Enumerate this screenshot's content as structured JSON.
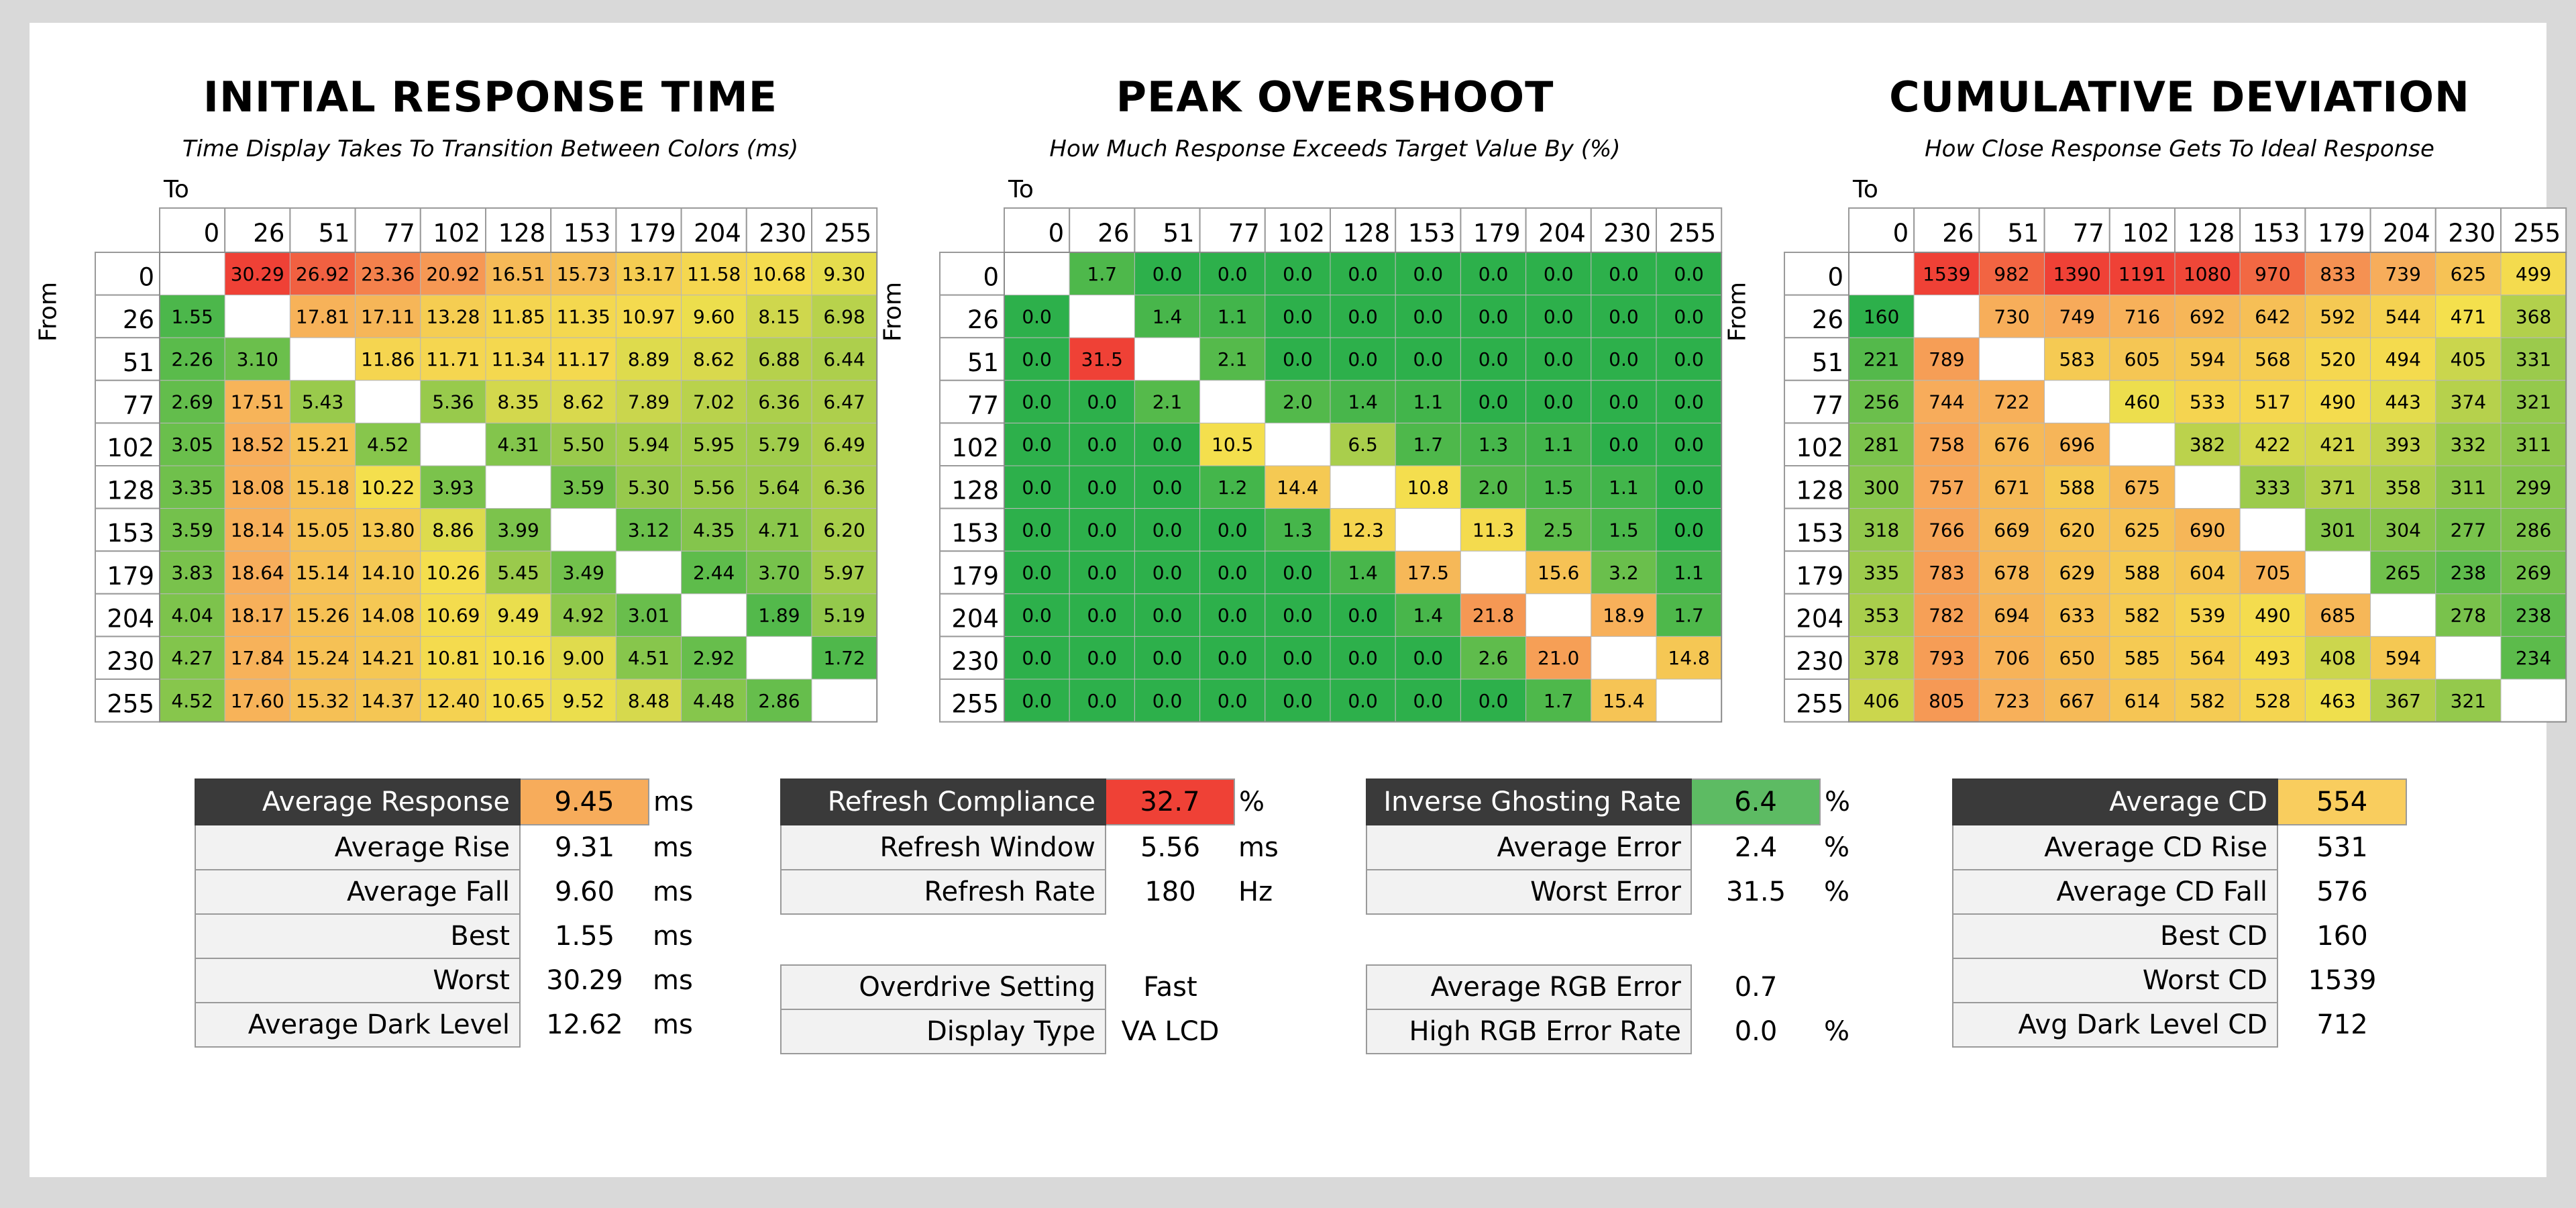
{
  "levels": [
    "0",
    "26",
    "51",
    "77",
    "102",
    "128",
    "153",
    "179",
    "204",
    "230",
    "255"
  ],
  "axis": {
    "to": "To",
    "from": "From"
  },
  "colors": {
    "green": "#2db04b",
    "yellow": "#f4e04d",
    "orange": "#f7ac5b",
    "red": "#ef4136",
    "dark": "#3a3a3a"
  },
  "charts": [
    {
      "title": "INITIAL RESPONSE TIME",
      "subtitle": "Time Display Takes To Transition Between Colors (ms)"
    },
    {
      "title": "PEAK OVERSHOOT",
      "subtitle": "How Much Response Exceeds Target Value By (%)"
    },
    {
      "title": "CUMULATIVE DEVIATION",
      "subtitle": "How Close Response Gets To Ideal Response"
    }
  ],
  "chart_data": [
    {
      "type": "heatmap",
      "title": "INITIAL RESPONSE TIME",
      "subtitle": "Time Display Takes To Transition Between Colors (ms)",
      "xlabel": "To",
      "ylabel": "From",
      "x": [
        "0",
        "26",
        "51",
        "77",
        "102",
        "128",
        "153",
        "179",
        "204",
        "230",
        "255"
      ],
      "y": [
        "0",
        "26",
        "51",
        "77",
        "102",
        "128",
        "153",
        "179",
        "204",
        "230",
        "255"
      ],
      "scale": {
        "good": 0,
        "bad": 30.29
      },
      "values": [
        [
          "",
          "30.29",
          "26.92",
          "23.36",
          "20.92",
          "16.51",
          "15.73",
          "13.17",
          "11.58",
          "10.68",
          "9.30"
        ],
        [
          "1.55",
          "",
          "17.81",
          "17.11",
          "13.28",
          "11.85",
          "11.35",
          "10.97",
          "9.60",
          "8.15",
          "6.98"
        ],
        [
          "2.26",
          "3.10",
          "",
          "11.86",
          "11.71",
          "11.34",
          "11.17",
          "8.89",
          "8.62",
          "6.88",
          "6.44"
        ],
        [
          "2.69",
          "17.51",
          "5.43",
          "",
          "5.36",
          "8.35",
          "8.62",
          "7.89",
          "7.02",
          "6.36",
          "6.47"
        ],
        [
          "3.05",
          "18.52",
          "15.21",
          "4.52",
          "",
          "4.31",
          "5.50",
          "5.94",
          "5.95",
          "5.79",
          "6.49"
        ],
        [
          "3.35",
          "18.08",
          "15.18",
          "10.22",
          "3.93",
          "",
          "3.59",
          "5.30",
          "5.56",
          "5.64",
          "6.36"
        ],
        [
          "3.59",
          "18.14",
          "15.05",
          "13.80",
          "8.86",
          "3.99",
          "",
          "3.12",
          "4.35",
          "4.71",
          "6.20"
        ],
        [
          "3.83",
          "18.64",
          "15.14",
          "14.10",
          "10.26",
          "5.45",
          "3.49",
          "",
          "2.44",
          "3.70",
          "5.97"
        ],
        [
          "4.04",
          "18.17",
          "15.26",
          "14.08",
          "10.69",
          "9.49",
          "4.92",
          "3.01",
          "",
          "1.89",
          "5.19"
        ],
        [
          "4.27",
          "17.84",
          "15.24",
          "14.21",
          "10.81",
          "10.16",
          "9.00",
          "4.51",
          "2.92",
          "",
          "1.72"
        ],
        [
          "4.52",
          "17.60",
          "15.32",
          "14.37",
          "12.40",
          "10.65",
          "9.52",
          "8.48",
          "4.48",
          "2.86",
          ""
        ]
      ]
    },
    {
      "type": "heatmap",
      "title": "PEAK OVERSHOOT",
      "subtitle": "How Much Response Exceeds Target Value By (%)",
      "xlabel": "To",
      "ylabel": "From",
      "x": [
        "0",
        "26",
        "51",
        "77",
        "102",
        "128",
        "153",
        "179",
        "204",
        "230",
        "255"
      ],
      "y": [
        "0",
        "26",
        "51",
        "77",
        "102",
        "128",
        "153",
        "179",
        "204",
        "230",
        "255"
      ],
      "scale": {
        "good": 0,
        "bad": 31.5
      },
      "values": [
        [
          "",
          "1.7",
          "0.0",
          "0.0",
          "0.0",
          "0.0",
          "0.0",
          "0.0",
          "0.0",
          "0.0",
          "0.0"
        ],
        [
          "0.0",
          "",
          "1.4",
          "1.1",
          "0.0",
          "0.0",
          "0.0",
          "0.0",
          "0.0",
          "0.0",
          "0.0"
        ],
        [
          "0.0",
          "31.5",
          "",
          "2.1",
          "0.0",
          "0.0",
          "0.0",
          "0.0",
          "0.0",
          "0.0",
          "0.0"
        ],
        [
          "0.0",
          "0.0",
          "2.1",
          "",
          "2.0",
          "1.4",
          "1.1",
          "0.0",
          "0.0",
          "0.0",
          "0.0"
        ],
        [
          "0.0",
          "0.0",
          "0.0",
          "10.5",
          "",
          "6.5",
          "1.7",
          "1.3",
          "1.1",
          "0.0",
          "0.0"
        ],
        [
          "0.0",
          "0.0",
          "0.0",
          "1.2",
          "14.4",
          "",
          "10.8",
          "2.0",
          "1.5",
          "1.1",
          "0.0"
        ],
        [
          "0.0",
          "0.0",
          "0.0",
          "0.0",
          "1.3",
          "12.3",
          "",
          "11.3",
          "2.5",
          "1.5",
          "0.0"
        ],
        [
          "0.0",
          "0.0",
          "0.0",
          "0.0",
          "0.0",
          "1.4",
          "17.5",
          "",
          "15.6",
          "3.2",
          "1.1"
        ],
        [
          "0.0",
          "0.0",
          "0.0",
          "0.0",
          "0.0",
          "0.0",
          "1.4",
          "21.8",
          "",
          "18.9",
          "1.7"
        ],
        [
          "0.0",
          "0.0",
          "0.0",
          "0.0",
          "0.0",
          "0.0",
          "0.0",
          "2.6",
          "21.0",
          "",
          "14.8"
        ],
        [
          "0.0",
          "0.0",
          "0.0",
          "0.0",
          "0.0",
          "0.0",
          "0.0",
          "0.0",
          "1.7",
          "15.4",
          ""
        ]
      ]
    },
    {
      "type": "heatmap",
      "title": "CUMULATIVE DEVIATION",
      "subtitle": "How Close Response Gets To Ideal Response",
      "xlabel": "To",
      "ylabel": "From",
      "x": [
        "0",
        "26",
        "51",
        "77",
        "102",
        "128",
        "153",
        "179",
        "204",
        "230",
        "255"
      ],
      "y": [
        "0",
        "26",
        "51",
        "77",
        "102",
        "128",
        "153",
        "179",
        "204",
        "230",
        "255"
      ],
      "scale": {
        "good": 160,
        "bad": 1100
      },
      "values": [
        [
          "",
          "1539",
          "982",
          "1390",
          "1191",
          "1080",
          "970",
          "833",
          "739",
          "625",
          "499"
        ],
        [
          "160",
          "",
          "730",
          "749",
          "716",
          "692",
          "642",
          "592",
          "544",
          "471",
          "368"
        ],
        [
          "221",
          "789",
          "",
          "583",
          "605",
          "594",
          "568",
          "520",
          "494",
          "405",
          "331"
        ],
        [
          "256",
          "744",
          "722",
          "",
          "460",
          "533",
          "517",
          "490",
          "443",
          "374",
          "321"
        ],
        [
          "281",
          "758",
          "676",
          "696",
          "",
          "382",
          "422",
          "421",
          "393",
          "332",
          "311"
        ],
        [
          "300",
          "757",
          "671",
          "588",
          "675",
          "",
          "333",
          "371",
          "358",
          "311",
          "299"
        ],
        [
          "318",
          "766",
          "669",
          "620",
          "625",
          "690",
          "",
          "301",
          "304",
          "277",
          "286"
        ],
        [
          "335",
          "783",
          "678",
          "629",
          "588",
          "604",
          "705",
          "",
          "265",
          "238",
          "269"
        ],
        [
          "353",
          "782",
          "694",
          "633",
          "582",
          "539",
          "490",
          "685",
          "",
          "278",
          "238"
        ],
        [
          "378",
          "793",
          "706",
          "650",
          "585",
          "564",
          "493",
          "408",
          "594",
          "",
          "234"
        ],
        [
          "406",
          "805",
          "723",
          "667",
          "614",
          "582",
          "528",
          "463",
          "367",
          "321",
          ""
        ]
      ]
    }
  ],
  "stats": [
    {
      "rows": [
        {
          "label": "Average Response",
          "value": "9.45",
          "unit": "ms",
          "highlight": "orange",
          "dark": true
        },
        {
          "label": "Average Rise",
          "value": "9.31",
          "unit": "ms"
        },
        {
          "label": "Average Fall",
          "value": "9.60",
          "unit": "ms"
        },
        {
          "label": "Best",
          "value": "1.55",
          "unit": "ms"
        },
        {
          "label": "Worst",
          "value": "30.29",
          "unit": "ms"
        },
        {
          "label": "Average Dark Level",
          "value": "12.62",
          "unit": "ms"
        }
      ]
    },
    {
      "rows": [
        {
          "label": "Refresh Compliance",
          "value": "32.7",
          "unit": "%",
          "highlight": "red",
          "dark": true
        },
        {
          "label": "Refresh Window",
          "value": "5.56",
          "unit": "ms"
        },
        {
          "label": "Refresh Rate",
          "value": "180",
          "unit": "Hz"
        },
        {
          "gap": true
        },
        {
          "label": "Overdrive Setting",
          "value": "Fast",
          "unit": ""
        },
        {
          "label": "Display Type",
          "value": "VA LCD",
          "unit": ""
        }
      ]
    },
    {
      "rows": [
        {
          "label": "Inverse Ghosting Rate",
          "value": "6.4",
          "unit": "%",
          "highlight": "green",
          "dark": true
        },
        {
          "label": "Average Error",
          "value": "2.4",
          "unit": "%"
        },
        {
          "label": "Worst Error",
          "value": "31.5",
          "unit": "%"
        },
        {
          "gap": true
        },
        {
          "label": "Average RGB Error",
          "value": "0.7",
          "unit": ""
        },
        {
          "label": "High RGB Error Rate",
          "value": "0.0",
          "unit": "%"
        }
      ]
    },
    {
      "rows": [
        {
          "label": "Average CD",
          "value": "554",
          "unit": "",
          "highlight": "yellow-orange",
          "dark": true
        },
        {
          "label": "Average CD Rise",
          "value": "531",
          "unit": ""
        },
        {
          "label": "Average CD Fall",
          "value": "576",
          "unit": ""
        },
        {
          "label": "Best CD",
          "value": "160",
          "unit": ""
        },
        {
          "label": "Worst CD",
          "value": "1539",
          "unit": ""
        },
        {
          "label": "Avg Dark Level CD",
          "value": "712",
          "unit": ""
        }
      ]
    }
  ]
}
